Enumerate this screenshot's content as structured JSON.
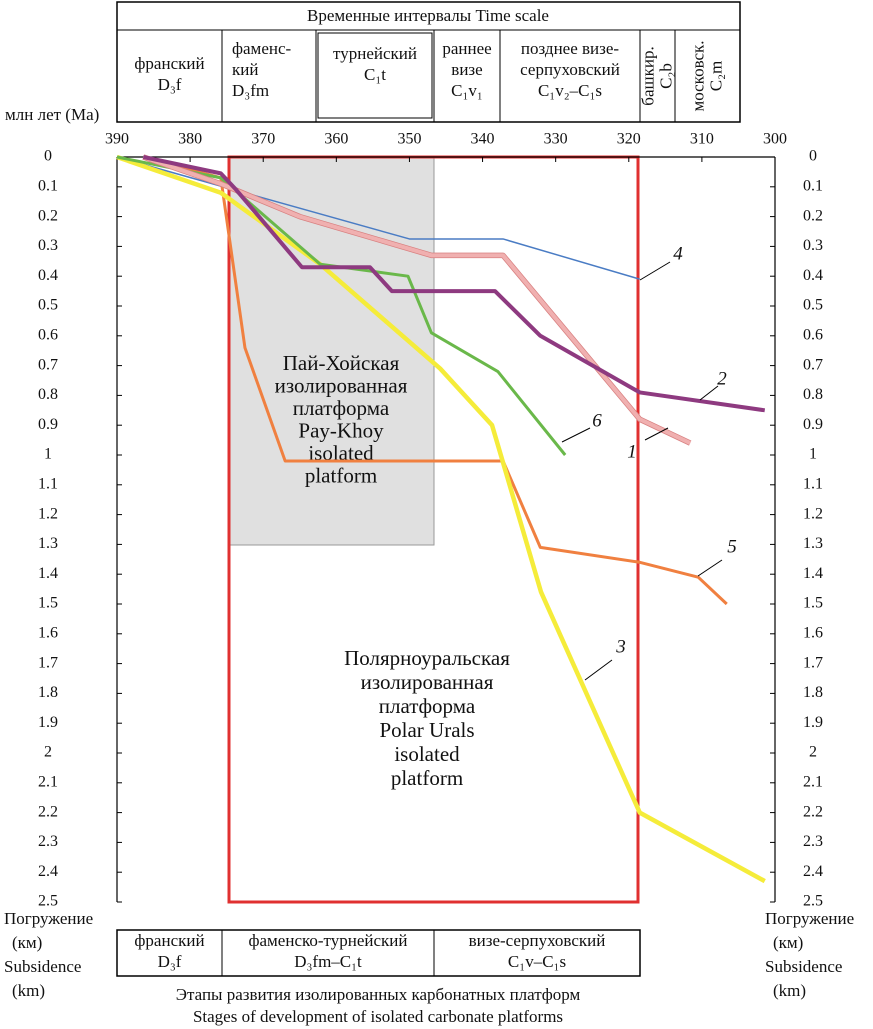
{
  "chart_data": {
    "type": "line",
    "x_label": "млн лет (Ma)",
    "xlim": [
      390,
      300
    ],
    "xticks": [
      390,
      380,
      370,
      360,
      350,
      340,
      330,
      320,
      310,
      300
    ],
    "ylim": [
      0,
      2.5
    ],
    "yticks": [
      0,
      0.1,
      0.2,
      0.3,
      0.4,
      0.5,
      0.6,
      0.7,
      0.8,
      0.9,
      1,
      1.1,
      1.2,
      1.3,
      1.4,
      1.5,
      1.6,
      1.7,
      1.8,
      1.9,
      2,
      2.1,
      2.2,
      2.3,
      2.4,
      2.5
    ],
    "y_label_left": [
      "Погружение",
      "(км)",
      "Subsidence",
      "(km)"
    ],
    "y_label_right": [
      "Погружение",
      "(км)",
      "Subsidence",
      "(km)"
    ],
    "series": [
      {
        "name": "4",
        "color": "#4a7cc4",
        "x": [
          390,
          350,
          337.2,
          318.5
        ],
        "values": [
          0,
          0.275,
          0.275,
          0.41
        ]
      },
      {
        "name": "5",
        "color": "#f08040",
        "x": [
          386.4,
          375.8,
          372.5,
          367,
          337.2,
          332.1,
          318.5,
          310.5,
          306.6
        ],
        "values": [
          0,
          0.07,
          0.64,
          1.02,
          1.02,
          1.31,
          1.36,
          1.41,
          1.5
        ]
      },
      {
        "name": "3",
        "color": "#f5ec3a",
        "x": [
          390,
          375.8,
          362.2,
          345.8,
          338.7,
          332,
          318.5,
          301.4
        ],
        "values": [
          0,
          0.12,
          0.36,
          0.71,
          0.9,
          1.46,
          2.2,
          2.43
        ]
      },
      {
        "name": "6",
        "color": "#6ab84a",
        "x": [
          390,
          375.8,
          362.2,
          350.2,
          347,
          337.9,
          328.7
        ],
        "values": [
          0,
          0.07,
          0.36,
          0.4,
          0.59,
          0.72,
          1
        ]
      },
      {
        "name": "1",
        "color": "#f0b0b0",
        "x": [
          386.4,
          375.8,
          365,
          347,
          337.2,
          318.5,
          311.6
        ],
        "values": [
          0,
          0.09,
          0.2,
          0.33,
          0.33,
          0.88,
          0.96
        ]
      },
      {
        "name": "2",
        "color": "#8e3a80",
        "x": [
          386.4,
          375.8,
          373.7,
          364.7,
          355.4,
          352.4,
          338.3,
          332.1,
          318.5,
          301.4
        ],
        "values": [
          0,
          0.055,
          0.11,
          0.37,
          0.37,
          0.45,
          0.45,
          0.6,
          0.79,
          0.85
        ]
      }
    ],
    "annotations": [
      [
        "Пай-Хойская",
        "изолированная",
        "платформа",
        "Pay-Khoy",
        "isolated",
        "platform"
      ],
      [
        "Полярноуральская",
        "изолированная",
        "платформа",
        "Polar Urals",
        "isolated",
        "platform"
      ]
    ]
  },
  "time_scale": {
    "title": "Временные интервалы Time scale",
    "cells": [
      [
        "франский",
        "D₃f"
      ],
      [
        "фаменс-",
        "кий",
        "D₃fm"
      ],
      [
        "турнейский",
        "C₁t"
      ],
      [
        "раннее",
        "визе",
        "C₁v₁"
      ],
      [
        "позднее визе-",
        "серпуховский",
        "C₁v₂–C₁s"
      ],
      [
        "башкир.",
        "C₂b"
      ],
      [
        "московск.",
        "C₂m"
      ]
    ]
  },
  "stages": {
    "cells": [
      [
        "франский",
        "D₃f"
      ],
      [
        "фаменско-турнейский",
        "D₃fm–C₁t"
      ],
      [
        "визе-серпуховский",
        "C₁v–C₁s"
      ]
    ],
    "caption": [
      "Этапы развития изолированных карбонатных платформ",
      "Stages of development of isolated carbonate platforms"
    ]
  }
}
